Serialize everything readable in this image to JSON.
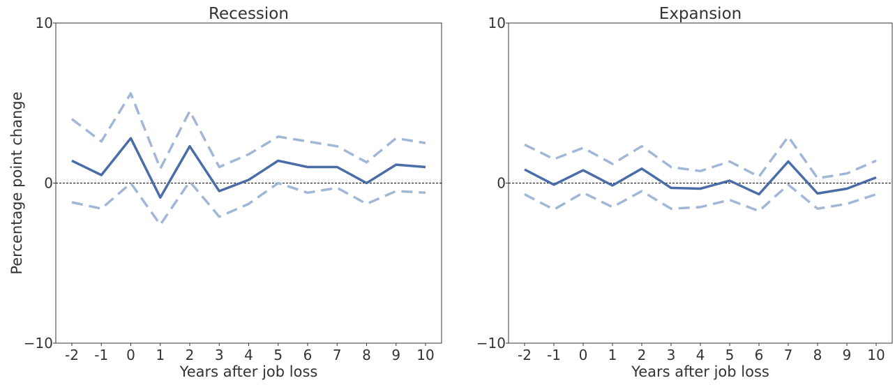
{
  "chart_data": [
    {
      "type": "line",
      "title": "Recession",
      "xlabel": "Years after job loss",
      "ylabel": "Percentage point change",
      "x": [
        -2,
        -1,
        0,
        1,
        2,
        3,
        4,
        5,
        6,
        7,
        8,
        9,
        10
      ],
      "x_tick_labels": [
        "-2",
        "-1",
        "0",
        "1",
        "2",
        "3",
        "4",
        "5",
        "6",
        "7",
        "8",
        "9",
        "10"
      ],
      "ylim": [
        -10,
        10
      ],
      "y_ticks": [
        10,
        0,
        -10
      ],
      "y_tick_labels": [
        "10",
        "0",
        "−10"
      ],
      "zero_line": true,
      "grid": false,
      "colors": {
        "estimate": "#4a6da8",
        "interval": "#a2b6d6",
        "zero_line": "#000000"
      },
      "series": [
        {
          "role": "estimate",
          "style": "solid",
          "values": [
            1.4,
            0.5,
            2.8,
            -0.9,
            2.3,
            -0.5,
            0.2,
            1.4,
            1.0,
            1.0,
            0.0,
            1.15,
            1.0
          ]
        },
        {
          "role": "upper",
          "style": "dashed",
          "values": [
            4.0,
            2.6,
            5.6,
            0.9,
            4.5,
            1.0,
            1.8,
            2.9,
            2.6,
            2.3,
            1.3,
            2.8,
            2.5
          ]
        },
        {
          "role": "lower",
          "style": "dashed",
          "values": [
            -1.2,
            -1.6,
            0.0,
            -2.6,
            0.1,
            -2.1,
            -1.3,
            0.0,
            -0.6,
            -0.3,
            -1.3,
            -0.5,
            -0.6
          ]
        }
      ]
    },
    {
      "type": "line",
      "title": "Expansion",
      "xlabel": "Years after job loss",
      "ylabel": "",
      "x": [
        -2,
        -1,
        0,
        1,
        2,
        3,
        4,
        5,
        6,
        7,
        8,
        9,
        10
      ],
      "x_tick_labels": [
        "-2",
        "-1",
        "0",
        "1",
        "2",
        "3",
        "4",
        "5",
        "6",
        "7",
        "8",
        "9",
        "10"
      ],
      "ylim": [
        -10,
        10
      ],
      "y_ticks": [
        10,
        0,
        -10
      ],
      "y_tick_labels": [
        "10",
        "0",
        "−10"
      ],
      "zero_line": true,
      "grid": false,
      "colors": {
        "estimate": "#4a6da8",
        "interval": "#a2b6d6",
        "zero_line": "#000000"
      },
      "series": [
        {
          "role": "estimate",
          "style": "solid",
          "values": [
            0.85,
            -0.1,
            0.8,
            -0.15,
            0.9,
            -0.3,
            -0.35,
            0.15,
            -0.7,
            1.35,
            -0.65,
            -0.35,
            0.35
          ]
        },
        {
          "role": "upper",
          "style": "dashed",
          "values": [
            2.4,
            1.5,
            2.2,
            1.2,
            2.3,
            1.0,
            0.75,
            1.35,
            0.4,
            2.9,
            0.3,
            0.6,
            1.4
          ]
        },
        {
          "role": "lower",
          "style": "dashed",
          "values": [
            -0.7,
            -1.65,
            -0.6,
            -1.5,
            -0.5,
            -1.6,
            -1.5,
            -1.05,
            -1.75,
            -0.1,
            -1.6,
            -1.3,
            -0.7
          ]
        }
      ]
    }
  ]
}
